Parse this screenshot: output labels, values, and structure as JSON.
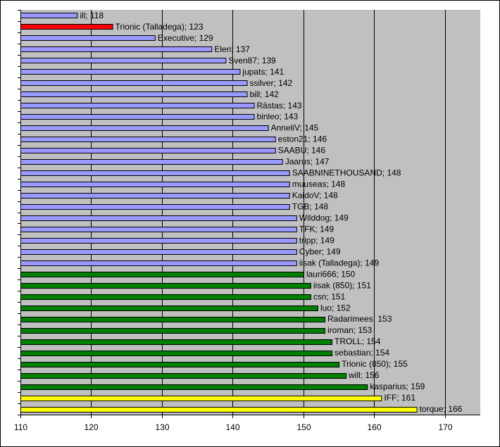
{
  "chart_data": {
    "type": "bar",
    "orientation": "horizontal",
    "title": "",
    "xlabel": "",
    "ylabel": "",
    "xlim": [
      110,
      175
    ],
    "xticks": [
      110,
      120,
      130,
      140,
      150,
      160,
      170
    ],
    "grid": "vertical",
    "legend": "none",
    "colors": {
      "plot_background": "#c0c0c0",
      "gridline": "#000000",
      "lavender": "#9999ff",
      "red": "#ff0000",
      "green": "#008000",
      "yellow": "#ffff00"
    },
    "bars": [
      {
        "label": "ill; 118",
        "value": 118,
        "color": "lavender"
      },
      {
        "label": "Trionic (Talladega); 123",
        "value": 123,
        "color": "red"
      },
      {
        "label": "Executive; 129",
        "value": 129,
        "color": "lavender"
      },
      {
        "label": "Eleri; 137",
        "value": 137,
        "color": "lavender"
      },
      {
        "label": "Sven87; 139",
        "value": 139,
        "color": "lavender"
      },
      {
        "label": "jupats; 141",
        "value": 141,
        "color": "lavender"
      },
      {
        "label": "ssilver; 142",
        "value": 142,
        "color": "lavender"
      },
      {
        "label": "bill; 142",
        "value": 142,
        "color": "lavender"
      },
      {
        "label": "Rästas; 143",
        "value": 143,
        "color": "lavender"
      },
      {
        "label": "binleo; 143",
        "value": 143,
        "color": "lavender"
      },
      {
        "label": "AnneliV; 145",
        "value": 145,
        "color": "lavender"
      },
      {
        "label": "eston21; 146",
        "value": 146,
        "color": "lavender"
      },
      {
        "label": "SAABU; 146",
        "value": 146,
        "color": "lavender"
      },
      {
        "label": "Jaarus; 147",
        "value": 147,
        "color": "lavender"
      },
      {
        "label": "SAABNINETHOUSAND; 148",
        "value": 148,
        "color": "lavender"
      },
      {
        "label": "muuseas; 148",
        "value": 148,
        "color": "lavender"
      },
      {
        "label": "KaidoV; 148",
        "value": 148,
        "color": "lavender"
      },
      {
        "label": "TGB; 148",
        "value": 148,
        "color": "lavender"
      },
      {
        "label": "Wilddog; 149",
        "value": 149,
        "color": "lavender"
      },
      {
        "label": "TFK; 149",
        "value": 149,
        "color": "lavender"
      },
      {
        "label": "tripp; 149",
        "value": 149,
        "color": "lavender"
      },
      {
        "label": "Cyber; 149",
        "value": 149,
        "color": "lavender"
      },
      {
        "label": "iisak (Talladega); 149",
        "value": 149,
        "color": "lavender"
      },
      {
        "label": "lauri666; 150",
        "value": 150,
        "color": "green"
      },
      {
        "label": "iisak (850); 151",
        "value": 151,
        "color": "green"
      },
      {
        "label": "csn; 151",
        "value": 151,
        "color": "green"
      },
      {
        "label": "luo; 152",
        "value": 152,
        "color": "green"
      },
      {
        "label": "Radarimees; 153",
        "value": 153,
        "color": "green"
      },
      {
        "label": "iroman; 153",
        "value": 153,
        "color": "green"
      },
      {
        "label": "TROLL; 154",
        "value": 154,
        "color": "green"
      },
      {
        "label": "sebastian; 154",
        "value": 154,
        "color": "green"
      },
      {
        "label": "Trionic (850); 155",
        "value": 155,
        "color": "green"
      },
      {
        "label": "will; 156",
        "value": 156,
        "color": "green"
      },
      {
        "label": "kasparius; 159",
        "value": 159,
        "color": "green"
      },
      {
        "label": "IFF; 161",
        "value": 161,
        "color": "yellow"
      },
      {
        "label": "torque; 166",
        "value": 166,
        "color": "yellow"
      }
    ]
  }
}
